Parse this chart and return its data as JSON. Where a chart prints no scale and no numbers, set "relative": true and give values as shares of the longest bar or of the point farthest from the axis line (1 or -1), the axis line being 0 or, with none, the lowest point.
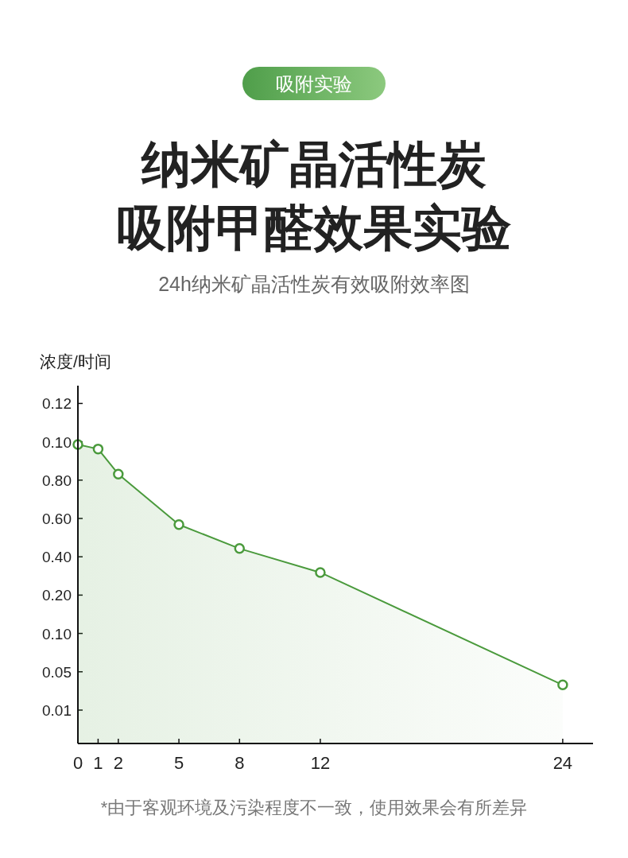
{
  "chart_data": {
    "type": "area",
    "title": "纳米矿晶活性炭吸附甲醛效果实验",
    "subtitle": "24h纳米矿晶活性炭有效吸附效率图",
    "ylabel": "浓度/时间",
    "annotations": [
      "吸附实验",
      "0.12",
      "0.10",
      "0.80",
      "0.60",
      "0.40",
      "0.20",
      "0.10",
      "0.05",
      "0.01",
      "*由于客观环境及污染程度不一致，使用效果会有所差异"
    ],
    "relative": true,
    "x": [
      0,
      1,
      2,
      5,
      8,
      12,
      24
    ],
    "series": [
      {
        "color": "#4a9a3c",
        "values": [
          1,
          0.985,
          0.901,
          0.732,
          0.652,
          0.572,
          0.196
        ]
      }
    ],
    "xlim": [
      0,
      25.5
    ],
    "xticks": [
      0,
      1,
      2,
      5,
      8,
      12,
      24
    ],
    "grid": false,
    "marker": "circle",
    "line_style": "solid"
  }
}
